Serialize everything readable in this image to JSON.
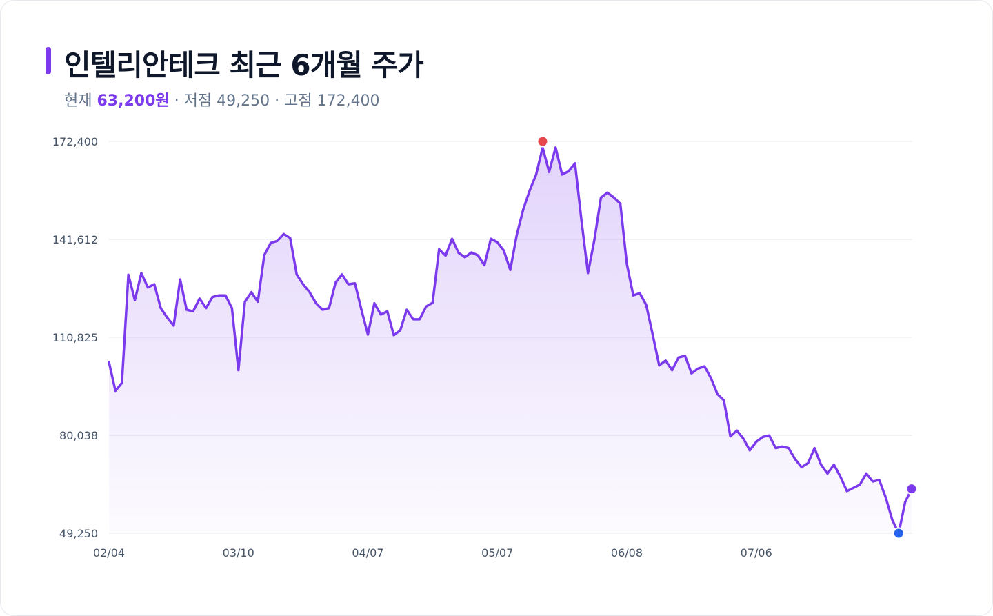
{
  "header": {
    "title": "인텔리안테크 최근 6개월 주가",
    "current_label": "현재",
    "current_value": "63,200원",
    "sep1": "·",
    "low_label": "저점",
    "low_value": "49,250",
    "sep2": "·",
    "high_label": "고점",
    "high_value": "172,400"
  },
  "colors": {
    "line": "#7c3aed",
    "high_marker": "#e5484d",
    "low_marker": "#2563eb",
    "last_marker": "#7c3aed",
    "grid": "#e5e7eb"
  },
  "chart_data": {
    "type": "area",
    "title": "인텔리안테크 최근 6개월 주가",
    "xlabel": "",
    "ylabel": "",
    "ylim": [
      49250,
      172400
    ],
    "y_ticks": [
      172400,
      141612,
      110825,
      80038,
      49250
    ],
    "y_tick_labels": [
      "172,400",
      "141,612",
      "110,825",
      "80,038",
      "49,250"
    ],
    "x_tick_labels": [
      "02/04",
      "03/10",
      "04/07",
      "05/07",
      "06/08",
      "07/06"
    ],
    "x_tick_indices": [
      0,
      20,
      40,
      60,
      80,
      100
    ],
    "grid": true,
    "legend": "none",
    "series": [
      {
        "values": [
          103000,
          94000,
          96500,
          130500,
          122500,
          131000,
          126500,
          127500,
          120000,
          117000,
          114500,
          129000,
          119500,
          119000,
          123000,
          120000,
          123500,
          124000,
          124000,
          120000,
          100500,
          122000,
          125000,
          122000,
          136700,
          140500,
          141100,
          143300,
          142000,
          130600,
          127500,
          125000,
          121500,
          119500,
          120000,
          128000,
          130600,
          127500,
          127800,
          119500,
          111700,
          121500,
          118000,
          119000,
          111500,
          113000,
          119500,
          116500,
          116500,
          120500,
          121700,
          138500,
          136500,
          141800,
          137400,
          136000,
          137500,
          136600,
          133500,
          141800,
          140700,
          138100,
          132000,
          143000,
          151000,
          157000,
          162000,
          170500,
          162800,
          170500,
          162000,
          163000,
          165500,
          147500,
          131000,
          141500,
          154700,
          156300,
          154800,
          152800,
          134000,
          124000,
          124700,
          121000,
          111700,
          102000,
          103500,
          100500,
          104500,
          105000,
          99500,
          101000,
          101700,
          98000,
          93000,
          91000,
          79700,
          81500,
          79000,
          75300,
          78000,
          79500,
          80000,
          76000,
          76500,
          76000,
          72500,
          70000,
          71300,
          76000,
          70800,
          68000,
          70800,
          67000,
          62500,
          63500,
          64500,
          68000,
          65500,
          66000,
          60500,
          53500,
          49250,
          59000,
          63200
        ]
      }
    ],
    "annotations": [
      {
        "label": "high",
        "value": 172400
      },
      {
        "label": "low",
        "value": 49250
      },
      {
        "label": "last",
        "value": 63200
      }
    ]
  }
}
